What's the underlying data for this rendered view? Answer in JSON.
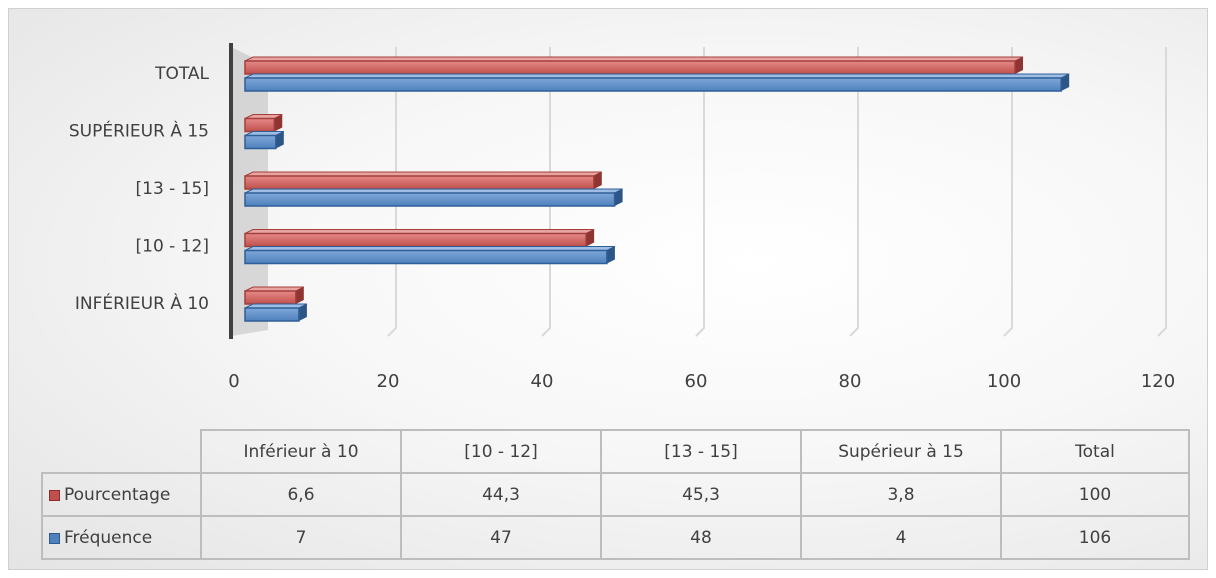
{
  "chart_data": {
    "type": "bar",
    "orientation": "horizontal",
    "categories": [
      "Inférieur à 10",
      "[10 - 12]",
      "[13 - 15]",
      "Supérieur à 15",
      "Total"
    ],
    "axis_category_labels": [
      "INFÉRIEUR À 10",
      "[10 - 12]",
      "[13 - 15]",
      "SUPÉRIEUR À 15",
      "TOTAL"
    ],
    "series": [
      {
        "name": "Pourcentage",
        "values": [
          6.6,
          44.3,
          45.3,
          3.8,
          100
        ],
        "color": "#c0504d",
        "value_labels": [
          "6,6",
          "44,3",
          "45,3",
          "3,8",
          "100"
        ]
      },
      {
        "name": "Fréquence",
        "values": [
          7,
          47,
          48,
          4,
          106
        ],
        "color": "#4f81bd",
        "value_labels": [
          "7",
          "47",
          "48",
          "4",
          "106"
        ]
      }
    ],
    "xlim": [
      0,
      120
    ],
    "x_ticks": [
      "0",
      "20",
      "40",
      "60",
      "80",
      "100",
      "120"
    ],
    "grid": true,
    "legend": "data-table below chart"
  }
}
